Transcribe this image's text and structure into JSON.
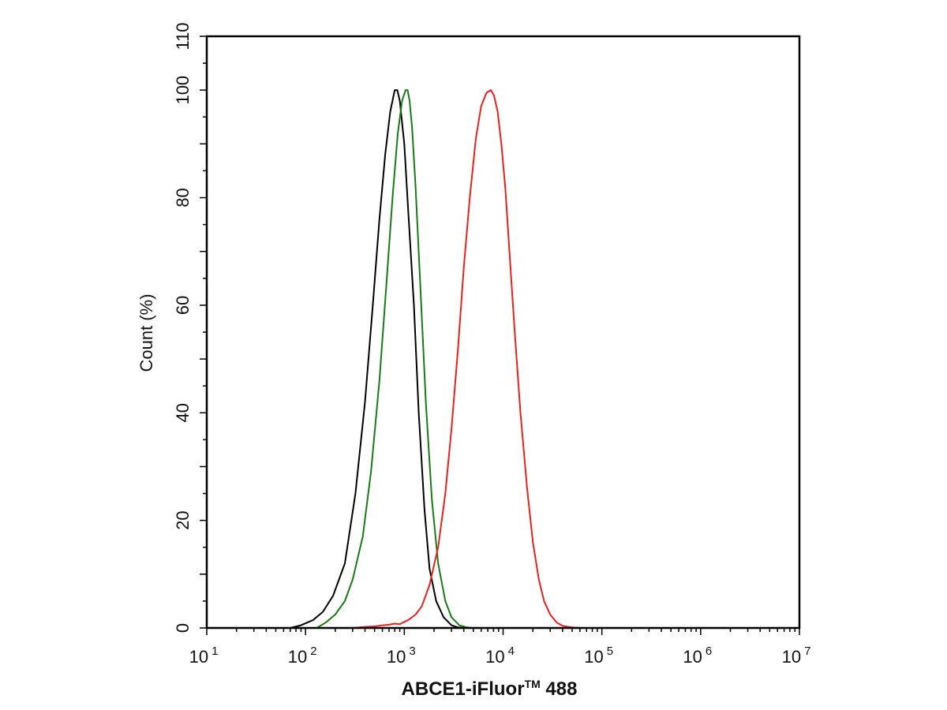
{
  "chart_data": {
    "type": "line",
    "x_scale": "log",
    "xlim": [
      10,
      10000000
    ],
    "ylim": [
      0,
      110
    ],
    "grid": false,
    "legend": "none",
    "xlabel": "ABCE1-iFluor",
    "xlabel_superscript": "TM",
    "xlabel_suffix": " 488",
    "ylabel": "Count  (%)",
    "x_ticks": [
      {
        "base": "10",
        "exp": "1"
      },
      {
        "base": "10",
        "exp": "2"
      },
      {
        "base": "10",
        "exp": "3"
      },
      {
        "base": "10",
        "exp": "4"
      },
      {
        "base": "10",
        "exp": "5"
      },
      {
        "base": "10",
        "exp": "6"
      },
      {
        "base": "10",
        "exp": "7"
      }
    ],
    "y_ticks": [
      "0",
      "20",
      "40",
      "60",
      "80",
      "100",
      "110"
    ],
    "series": [
      {
        "color": "#000000",
        "x": [
          70,
          90,
          120,
          150,
          190,
          250,
          320,
          400,
          480,
          560,
          640,
          720,
          800,
          850,
          900,
          1000,
          1100,
          1250,
          1400,
          1600,
          1800,
          2100,
          2500,
          3000,
          3500,
          4000
        ],
        "y": [
          0,
          0.5,
          1.5,
          3,
          6,
          12,
          25,
          42,
          60,
          76,
          88,
          96,
          100,
          100,
          98,
          90,
          77,
          60,
          40,
          22,
          11,
          5,
          2,
          0.5,
          0.1,
          0
        ]
      },
      {
        "color": "#1a7a1a",
        "x": [
          130,
          160,
          200,
          250,
          300,
          380,
          460,
          560,
          660,
          760,
          860,
          950,
          1030,
          1080,
          1130,
          1200,
          1300,
          1450,
          1650,
          1900,
          2200,
          2600,
          3000,
          3600,
          4300,
          5000
        ],
        "y": [
          0,
          1,
          2.5,
          5,
          9,
          17,
          29,
          46,
          64,
          80,
          92,
          98,
          100,
          100,
          98,
          93,
          82,
          64,
          42,
          24,
          12,
          5,
          2,
          0.5,
          0.1,
          0
        ]
      },
      {
        "color": "#e3231f",
        "x": [
          300,
          400,
          500,
          600,
          700,
          800,
          900,
          1100,
          1300,
          1500,
          1800,
          2200,
          2600,
          3000,
          3500,
          4000,
          4600,
          5300,
          6000,
          6800,
          7500,
          8100,
          8800,
          9600,
          10500,
          11500,
          13000,
          15000,
          17500,
          20000,
          23000,
          26000,
          30000,
          35000,
          40000,
          50000,
          60000
        ],
        "y": [
          0,
          0.2,
          0.3,
          0.5,
          0.6,
          0.8,
          0.7,
          1.5,
          2.5,
          4,
          8,
          15,
          25,
          37,
          52,
          67,
          80,
          91,
          97,
          99.5,
          100,
          99,
          96,
          90,
          82,
          71,
          56,
          40,
          26,
          16,
          9,
          5,
          2.5,
          1,
          0.4,
          0.1,
          0
        ]
      }
    ]
  }
}
